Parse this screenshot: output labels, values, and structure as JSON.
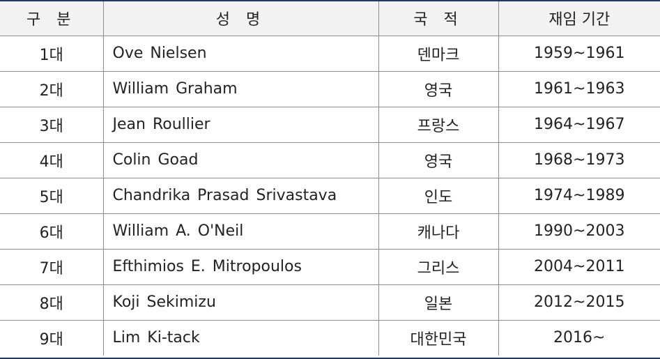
{
  "table": {
    "headers": [
      "구 분",
      "성 명",
      "국 적",
      "재임 기간"
    ],
    "rows": [
      {
        "order": "1대",
        "name": "Ove Nielsen",
        "nationality": "덴마크",
        "term": "1959~1961"
      },
      {
        "order": "2대",
        "name": "William Graham",
        "nationality": "영국",
        "term": "1961~1963"
      },
      {
        "order": "3대",
        "name": "Jean Roullier",
        "nationality": "프랑스",
        "term": "1964~1967"
      },
      {
        "order": "4대",
        "name": "Colin Goad",
        "nationality": "영국",
        "term": "1968~1973"
      },
      {
        "order": "5대",
        "name": "Chandrika Prasad Srivastava",
        "nationality": "인도",
        "term": "1974~1989"
      },
      {
        "order": "6대",
        "name": "William A. O'Neil",
        "nationality": "캐나다",
        "term": "1990~2003"
      },
      {
        "order": "7대",
        "name": "Efthimios E. Mitropoulos",
        "nationality": "그리스",
        "term": "2004~2011"
      },
      {
        "order": "8대",
        "name": "Koji Sekimizu",
        "nationality": "일본",
        "term": "2012~2015"
      },
      {
        "order": "9대",
        "name": "Lim Ki-tack",
        "nationality": "대한민국",
        "term": "2016~"
      }
    ]
  },
  "colors": {
    "rule": "#1f3864",
    "header_bg": "#f2f2f2",
    "grid": "#8c8c8c",
    "text": "#222222"
  }
}
